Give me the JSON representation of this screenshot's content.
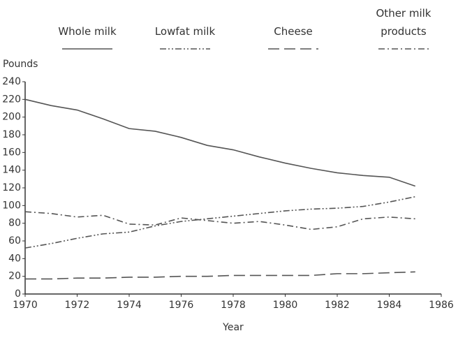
{
  "chart_data": {
    "type": "line",
    "x_label": "Year",
    "y_label": "Pounds",
    "x": [
      1970,
      1971,
      1972,
      1973,
      1974,
      1975,
      1976,
      1977,
      1978,
      1979,
      1980,
      1981,
      1982,
      1983,
      1984,
      1985
    ],
    "series": [
      {
        "name": "Whole milk",
        "color": "#555555",
        "dash": "none",
        "values": [
          220,
          213,
          208,
          198,
          187,
          184,
          177,
          168,
          163,
          155,
          148,
          142,
          137,
          134,
          132,
          122
        ]
      },
      {
        "name": "Lowfat milk",
        "color": "#555555",
        "dash": "9 3 2 3 2 3",
        "values": [
          52,
          57,
          63,
          68,
          70,
          77,
          82,
          85,
          88,
          91,
          94,
          96,
          97,
          99,
          104,
          110
        ]
      },
      {
        "name": "Cheese",
        "color": "#555555",
        "dash": "16 7",
        "values": [
          17,
          17,
          18,
          18,
          19,
          19,
          20,
          20,
          21,
          21,
          21,
          21,
          23,
          23,
          24,
          25
        ]
      },
      {
        "name": "Other milk products",
        "color": "#555555",
        "dash": "9 4 2 4",
        "values": [
          93,
          91,
          87,
          89,
          79,
          78,
          86,
          83,
          80,
          82,
          78,
          73,
          76,
          85,
          87,
          85
        ]
      }
    ],
    "xlim": [
      1970,
      1986
    ],
    "xticks": [
      1970,
      1972,
      1974,
      1976,
      1978,
      1980,
      1982,
      1984,
      1986
    ],
    "ylim": [
      0,
      240
    ],
    "yticks": [
      0,
      20,
      40,
      60,
      80,
      100,
      120,
      140,
      160,
      180,
      200,
      220,
      240
    ],
    "grid": false
  }
}
